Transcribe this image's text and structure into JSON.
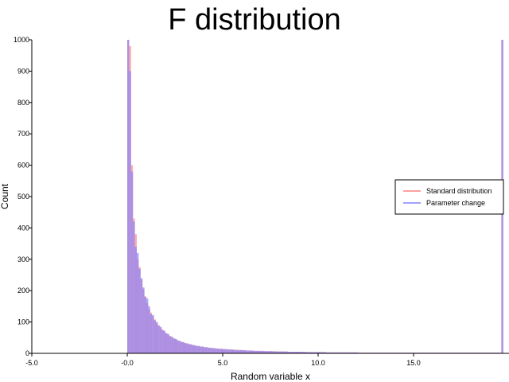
{
  "chart_data": {
    "type": "bar",
    "title": "F distribution",
    "xlabel": "Random variable x",
    "ylabel": "Count",
    "xlim": [
      -5.0,
      20.0
    ],
    "ylim": [
      0,
      1000
    ],
    "xticks": [
      {
        "value": -5.0,
        "label": "-5.0"
      },
      {
        "value": 0.0,
        "label": "-0.0"
      },
      {
        "value": 5.0,
        "label": "5.0"
      },
      {
        "value": 10.0,
        "label": "10.0"
      },
      {
        "value": 15.0,
        "label": "15.0"
      }
    ],
    "yticks": [
      0,
      100,
      200,
      300,
      400,
      500,
      600,
      700,
      800,
      900,
      1000
    ],
    "grid": false,
    "legend_position": "right",
    "series": [
      {
        "name": "Standard distribution",
        "color": "#ff8080",
        "bin_width": 0.1,
        "bin_start": 0.0,
        "values": [
          1000,
          980,
          600,
          430,
          380,
          300,
          275,
          235,
          205,
          182,
          160,
          140,
          130,
          118,
          108,
          98,
          90,
          82,
          76,
          70,
          65,
          60,
          56,
          52,
          48,
          45,
          42,
          39,
          37,
          35,
          33,
          31,
          30,
          28,
          27,
          25,
          24,
          23,
          22,
          21,
          20,
          19,
          18,
          18,
          17,
          16,
          16,
          15,
          15,
          14,
          14,
          13,
          13,
          12,
          12,
          12,
          11,
          11,
          11,
          10,
          10,
          10,
          9,
          9,
          9,
          9,
          8,
          8,
          8,
          8,
          8,
          7,
          7,
          7,
          7,
          7,
          7,
          6,
          6,
          6,
          6,
          6,
          6,
          6,
          5,
          5,
          5,
          5,
          5,
          5,
          5,
          5,
          5,
          4,
          4,
          4,
          4,
          4,
          4,
          4,
          4,
          4,
          4,
          4,
          3,
          3,
          3,
          3,
          3,
          3,
          3,
          3,
          3,
          3,
          3,
          3,
          3,
          3,
          3,
          3,
          3,
          2,
          2,
          2,
          2,
          2,
          2,
          2,
          2,
          2,
          2,
          2,
          2,
          2,
          2,
          2,
          2,
          2,
          2,
          2,
          2,
          2,
          2,
          2,
          2,
          2,
          2,
          2,
          2,
          2,
          2,
          2,
          2,
          2,
          2,
          2,
          2,
          2,
          2,
          2,
          2,
          2,
          2,
          2,
          2,
          2,
          2,
          2,
          2,
          2,
          2,
          2,
          2,
          2,
          2,
          2,
          2,
          2,
          2,
          2,
          2,
          2,
          2,
          2,
          2,
          2,
          2,
          2,
          2,
          2,
          2,
          2,
          2,
          2,
          2,
          2,
          1000
        ]
      },
      {
        "name": "Parameter change",
        "color": "#8080ff",
        "bin_width": 0.1,
        "bin_start": 0.0,
        "values": [
          1000,
          900,
          580,
          420,
          340,
          320,
          270,
          240,
          210,
          180,
          175,
          150,
          125,
          122,
          105,
          100,
          88,
          85,
          74,
          72,
          63,
          62,
          54,
          53,
          47,
          46,
          41,
          40,
          36,
          36,
          32,
          32,
          29,
          29,
          26,
          26,
          23,
          24,
          21,
          22,
          19,
          20,
          18,
          18,
          16,
          17,
          15,
          15,
          14,
          15,
          13,
          14,
          12,
          13,
          12,
          12,
          11,
          11,
          10,
          11,
          10,
          10,
          9,
          9,
          9,
          9,
          8,
          8,
          8,
          8,
          7,
          8,
          7,
          7,
          7,
          7,
          6,
          7,
          6,
          6,
          6,
          6,
          6,
          6,
          5,
          5,
          5,
          5,
          5,
          5,
          5,
          5,
          4,
          5,
          4,
          4,
          4,
          4,
          4,
          4,
          4,
          4,
          4,
          4,
          3,
          3,
          3,
          3,
          3,
          3,
          3,
          3,
          3,
          3,
          3,
          3,
          3,
          3,
          3,
          3,
          3,
          2,
          2,
          2,
          2,
          2,
          2,
          2,
          2,
          2,
          2,
          2,
          2,
          2,
          2,
          2,
          2,
          2,
          2,
          2,
          2,
          2,
          2,
          2,
          2,
          2,
          2,
          2,
          2,
          2,
          2,
          2,
          2,
          2,
          2,
          2,
          2,
          2,
          2,
          2,
          2,
          2,
          2,
          2,
          2,
          2,
          2,
          2,
          2,
          2,
          2,
          2,
          2,
          2,
          2,
          2,
          2,
          2,
          2,
          2,
          2,
          2,
          2,
          2,
          2,
          2,
          2,
          2,
          2,
          2,
          2,
          2,
          2,
          2,
          2,
          2,
          1000
        ]
      }
    ]
  }
}
